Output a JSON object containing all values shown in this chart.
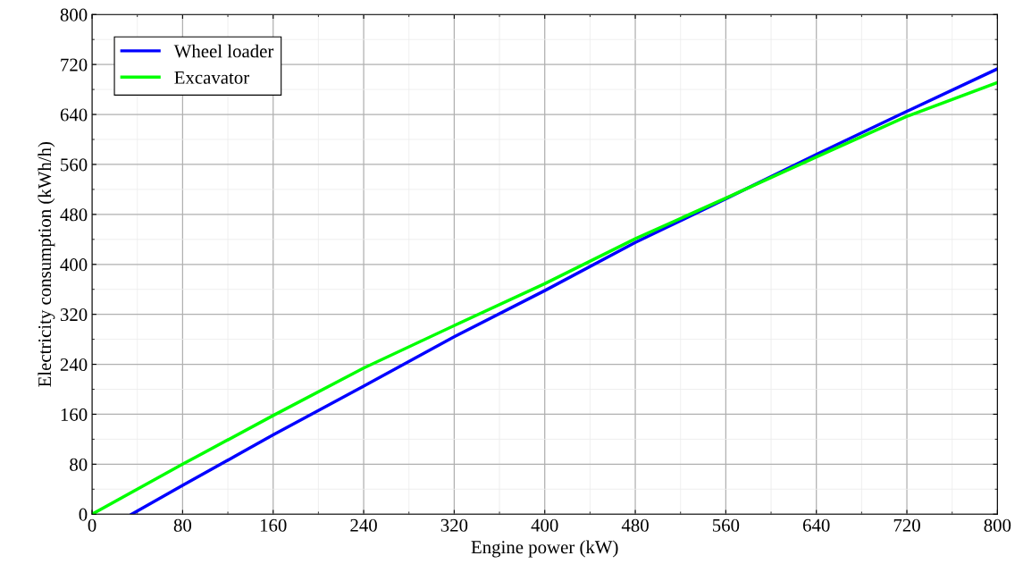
{
  "chart_data": {
    "type": "line",
    "xlabel": "Engine power (kW)",
    "ylabel": "Electricity consumption (kWh/h)",
    "series": [
      {
        "name": "Wheel loader",
        "color": "#0000ff",
        "x": [
          35,
          80,
          160,
          240,
          320,
          400,
          480,
          560,
          640,
          720,
          800
        ],
        "values": [
          0,
          46,
          127,
          205,
          284,
          358,
          435,
          505,
          576,
          645,
          713
        ]
      },
      {
        "name": "Excavator",
        "color": "#00ff00",
        "x": [
          0,
          80,
          160,
          240,
          320,
          400,
          480,
          560,
          640,
          720,
          800
        ],
        "values": [
          0,
          80,
          158,
          234,
          302,
          369,
          441,
          506,
          572,
          637,
          691
        ]
      }
    ],
    "xlim": [
      0,
      800
    ],
    "ylim": [
      0,
      800
    ],
    "xticks": [
      0,
      80,
      160,
      240,
      320,
      400,
      480,
      560,
      640,
      720,
      800
    ],
    "yticks": [
      0,
      80,
      160,
      240,
      320,
      400,
      480,
      560,
      640,
      720,
      800
    ],
    "grid": true,
    "legend": "top left",
    "marker": "none",
    "line_style": "solid"
  }
}
